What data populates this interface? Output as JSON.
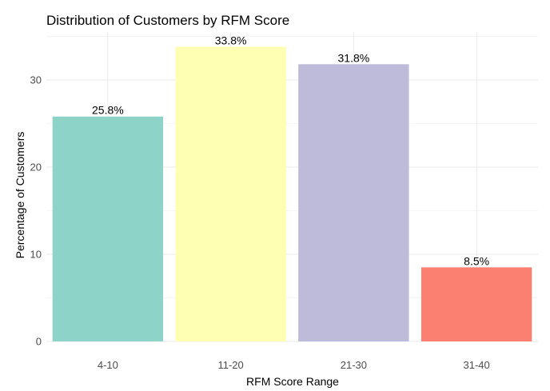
{
  "chart_data": {
    "type": "bar",
    "title": "Distribution of Customers by RFM Score",
    "xlabel": "RFM Score Range",
    "ylabel": "Percentage of Customers",
    "categories": [
      "4-10",
      "11-20",
      "21-30",
      "31-40"
    ],
    "values": [
      25.8,
      33.8,
      31.8,
      8.5
    ],
    "data_labels": [
      "25.8%",
      "33.8%",
      "31.8%",
      "8.5%"
    ],
    "colors": [
      "#8DD3C7",
      "#FFFFB3",
      "#BEBADA",
      "#FB8072"
    ],
    "ylim": [
      0,
      35.5
    ],
    "yticks": [
      0,
      10,
      20,
      30
    ],
    "ytick_labels": [
      "0",
      "10",
      "20",
      "30"
    ],
    "grid": true,
    "legend": "none"
  }
}
